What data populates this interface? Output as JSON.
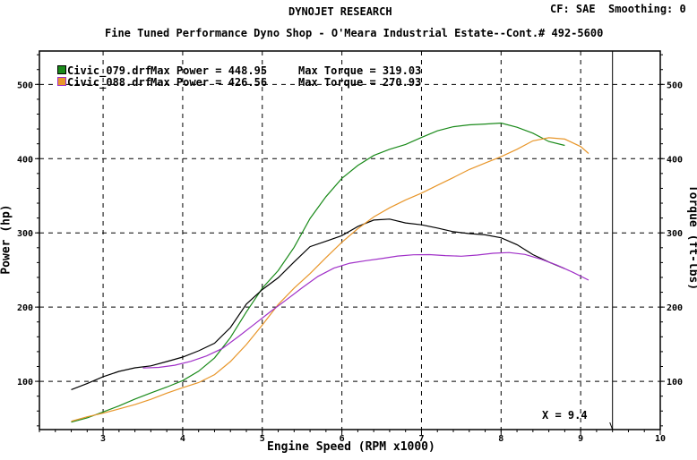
{
  "header": {
    "title": "DYNOJET RESEARCH",
    "settings": "CF: SAE  Smoothing: 0",
    "subtitle": "Fine Tuned Performance Dyno Shop - O'Meara Industrial Estate--Cont.# 492-5600"
  },
  "legend": [
    {
      "file": "Civic_079.drf",
      "power_text": "Max Power = 448.95",
      "torque_text": "Max Torque = 319.03",
      "color": "#1a8a1a"
    },
    {
      "file": "Civic_088.drf",
      "power_text": "Max Power = 426.56",
      "torque_text": "Max Torque = 270.93",
      "color": "#b040d0"
    }
  ],
  "cursor": {
    "label": "X = 9.4",
    "value": 9.4
  },
  "chart_data": {
    "type": "line",
    "xlabel": "Engine Speed (RPM x1000)",
    "ylabel_left": "Power (hp)",
    "ylabel_right": "Torque (ft-lbs)",
    "xlim": [
      2.2,
      10
    ],
    "ylim": [
      35,
      545
    ],
    "x_ticks": [
      3,
      4,
      5,
      6,
      7,
      8,
      9,
      10
    ],
    "y_ticks": [
      100,
      200,
      300,
      400,
      500
    ],
    "grid": true,
    "series": [
      {
        "name": "Civic_079.drf Power",
        "color": "#1a8a1a",
        "x": [
          2.6,
          2.8,
          3.0,
          3.2,
          3.4,
          3.6,
          3.8,
          4.0,
          4.2,
          4.4,
          4.6,
          4.8,
          5.0,
          5.2,
          5.4,
          5.6,
          5.8,
          6.0,
          6.2,
          6.4,
          6.6,
          6.8,
          7.0,
          7.2,
          7.4,
          7.6,
          7.8,
          8.0,
          8.2,
          8.4,
          8.6,
          8.8
        ],
        "y": [
          45,
          52,
          60,
          67,
          75,
          83,
          92,
          102,
          115,
          132,
          158,
          192,
          225,
          250,
          282,
          320,
          348,
          372,
          390,
          405,
          414,
          420,
          428,
          436,
          442,
          446,
          448,
          449,
          442,
          433,
          422,
          418
        ]
      },
      {
        "name": "Civic_079.drf Torque",
        "color": "#000000",
        "x": [
          2.6,
          2.8,
          3.0,
          3.2,
          3.4,
          3.6,
          3.8,
          4.0,
          4.2,
          4.4,
          4.6,
          4.8,
          5.0,
          5.2,
          5.4,
          5.6,
          5.8,
          6.0,
          6.2,
          6.4,
          6.6,
          6.8,
          7.0,
          7.2,
          7.4,
          7.6,
          7.8,
          8.0,
          8.2,
          8.4,
          8.6,
          8.8
        ],
        "y": [
          90,
          97,
          105,
          112,
          118,
          122,
          128,
          133,
          140,
          150,
          172,
          205,
          225,
          240,
          260,
          280,
          288,
          297,
          310,
          318,
          318,
          312,
          310,
          307,
          303,
          300,
          297,
          292,
          283,
          271,
          262,
          253
        ]
      },
      {
        "name": "Civic_088.drf Power",
        "color": "#e8962a",
        "x": [
          2.6,
          2.8,
          3.0,
          3.2,
          3.4,
          3.6,
          3.8,
          4.0,
          4.2,
          4.4,
          4.6,
          4.8,
          5.0,
          5.2,
          5.4,
          5.6,
          5.8,
          6.0,
          6.2,
          6.4,
          6.6,
          6.8,
          7.0,
          7.2,
          7.4,
          7.6,
          7.8,
          8.0,
          8.2,
          8.4,
          8.6,
          8.8,
          9.0,
          9.1
        ],
        "y": [
          45,
          51,
          57,
          64,
          70,
          76,
          83,
          90,
          98,
          110,
          128,
          150,
          175,
          202,
          225,
          246,
          268,
          288,
          305,
          320,
          333,
          345,
          355,
          365,
          374,
          384,
          393,
          403,
          414,
          425,
          428,
          425,
          415,
          407
        ]
      },
      {
        "name": "Civic_088.drf Torque",
        "color": "#a030c8",
        "x": [
          3.5,
          3.7,
          3.9,
          4.1,
          4.3,
          4.5,
          4.7,
          4.9,
          5.1,
          5.3,
          5.5,
          5.7,
          5.9,
          6.1,
          6.3,
          6.5,
          6.7,
          6.9,
          7.1,
          7.3,
          7.5,
          7.7,
          7.9,
          8.1,
          8.3,
          8.5,
          8.7,
          8.9,
          9.1
        ],
        "y": [
          118,
          120,
          123,
          127,
          133,
          143,
          160,
          178,
          195,
          210,
          225,
          240,
          252,
          260,
          264,
          266,
          268,
          269,
          270,
          270,
          270,
          271,
          272,
          272,
          270,
          265,
          258,
          248,
          236
        ]
      }
    ]
  }
}
